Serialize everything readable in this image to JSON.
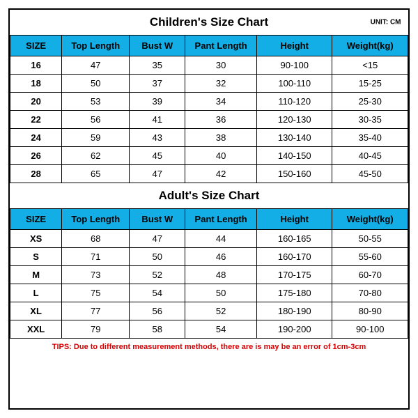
{
  "unit_label": "UNIT: CM",
  "columns": [
    "SIZE",
    "Top Length",
    "Bust W",
    "Pant Length",
    "Height",
    "Weight(kg)"
  ],
  "col_widths_pct": [
    13,
    17,
    14,
    18,
    19,
    19
  ],
  "header_bg": "#14aee6",
  "border_color": "#000000",
  "background_color": "#ffffff",
  "children": {
    "title": "Children's Size Chart",
    "rows": [
      [
        "16",
        "47",
        "35",
        "30",
        "90-100",
        "<15"
      ],
      [
        "18",
        "50",
        "37",
        "32",
        "100-110",
        "15-25"
      ],
      [
        "20",
        "53",
        "39",
        "34",
        "110-120",
        "25-30"
      ],
      [
        "22",
        "56",
        "41",
        "36",
        "120-130",
        "30-35"
      ],
      [
        "24",
        "59",
        "43",
        "38",
        "130-140",
        "35-40"
      ],
      [
        "26",
        "62",
        "45",
        "40",
        "140-150",
        "40-45"
      ],
      [
        "28",
        "65",
        "47",
        "42",
        "150-160",
        "45-50"
      ]
    ]
  },
  "adult": {
    "title": "Adult's Size Chart",
    "rows": [
      [
        "XS",
        "68",
        "47",
        "44",
        "160-165",
        "50-55"
      ],
      [
        "S",
        "71",
        "50",
        "46",
        "160-170",
        "55-60"
      ],
      [
        "M",
        "73",
        "52",
        "48",
        "170-175",
        "60-70"
      ],
      [
        "L",
        "75",
        "54",
        "50",
        "175-180",
        "70-80"
      ],
      [
        "XL",
        "77",
        "56",
        "52",
        "180-190",
        "80-90"
      ],
      [
        "XXL",
        "79",
        "58",
        "54",
        "190-200",
        "90-100"
      ]
    ]
  },
  "tips": "TIPS: Due to different measurement methods, there are is may be an error of 1cm-3cm",
  "tips_color": "#d80000"
}
